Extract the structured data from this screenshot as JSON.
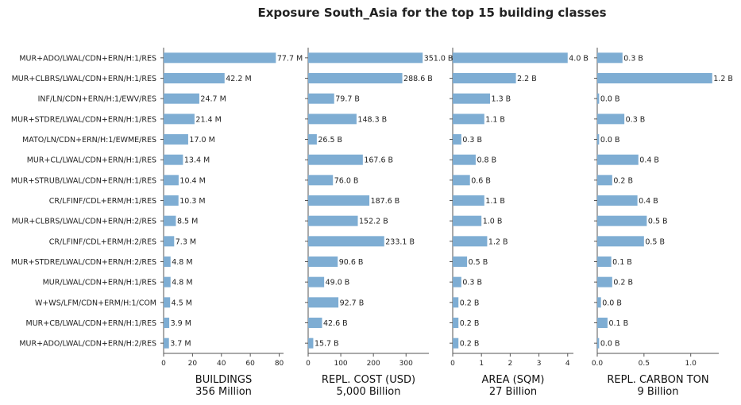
{
  "title": "Exposure South_Asia for the top 15 building classes",
  "bar_color": "#7eadd3",
  "categories": [
    "MUR+ADO/LWAL/CDN+ERN/H:1/RES",
    "MUR+CLBRS/LWAL/CDN+ERN/H:1/RES",
    "INF/LN/CDN+ERN/H:1/EWV/RES",
    "MUR+STDRE/LWAL/CDN+ERN/H:1/RES",
    "MATO/LN/CDN+ERN/H:1/EWME/RES",
    "MUR+CL/LWAL/CDN+ERN/H:1/RES",
    "MUR+STRUB/LWAL/CDN+ERN/H:1/RES",
    "CR/LFINF/CDL+ERM/H:1/RES",
    "MUR+CLBRS/LWAL/CDN+ERN/H:2/RES",
    "CR/LFINF/CDL+ERM/H:2/RES",
    "MUR+STDRE/LWAL/CDN+ERN/H:2/RES",
    "MUR/LWAL/CDN+ERN/H:1/RES",
    "W+WS/LFM/CDN+ERM/H:1/COM",
    "MUR+CB/LWAL/CDN+ERN/H:1/RES",
    "MUR+ADO/LWAL/CDN+ERN/H:2/RES"
  ],
  "chart_data": [
    {
      "type": "bar",
      "orientation": "horizontal",
      "xlabel": "BUILDINGS",
      "subtitle": "356 Million",
      "xlim": [
        0,
        83
      ],
      "ticks": [
        0,
        20,
        40,
        60,
        80
      ],
      "tick_labels": [
        "0",
        "20",
        "40",
        "60",
        "80"
      ],
      "values": [
        77.7,
        42.2,
        24.7,
        21.4,
        17.0,
        13.4,
        10.4,
        10.3,
        8.5,
        7.3,
        4.8,
        4.8,
        4.5,
        3.9,
        3.7
      ],
      "labels": [
        "77.7 M",
        "42.2 M",
        "24.7 M",
        "21.4 M",
        "17.0 M",
        "13.4 M",
        "10.4 M",
        "10.3 M",
        "8.5 M",
        "7.3 M",
        "4.8 M",
        "4.8 M",
        "4.5 M",
        "3.9 M",
        "3.7 M"
      ]
    },
    {
      "type": "bar",
      "orientation": "horizontal",
      "xlabel": "REPL. COST (USD)",
      "subtitle": "5,000 Billion",
      "xlim": [
        0,
        370
      ],
      "ticks": [
        0,
        100,
        200,
        300
      ],
      "tick_labels": [
        "0",
        "100",
        "200",
        "300"
      ],
      "values": [
        351.0,
        288.6,
        79.7,
        148.3,
        26.5,
        167.6,
        76.0,
        187.6,
        152.2,
        233.1,
        90.6,
        49.0,
        92.7,
        42.6,
        15.7
      ],
      "labels": [
        "351.0 B",
        "288.6 B",
        "79.7 B",
        "148.3 B",
        "26.5 B",
        "167.6 B",
        "76.0 B",
        "187.6 B",
        "152.2 B",
        "233.1 B",
        "90.6 B",
        "49.0 B",
        "92.7 B",
        "42.6 B",
        "15.7 B"
      ]
    },
    {
      "type": "bar",
      "orientation": "horizontal",
      "xlabel": "AREA (SQM)",
      "subtitle": "27 Billion",
      "xlim": [
        0,
        4.2
      ],
      "ticks": [
        0,
        1,
        2,
        3,
        4
      ],
      "tick_labels": [
        "0",
        "1",
        "2",
        "3",
        "4"
      ],
      "values": [
        4.0,
        2.2,
        1.3,
        1.1,
        0.3,
        0.8,
        0.6,
        1.1,
        1.0,
        1.2,
        0.5,
        0.3,
        0.2,
        0.2,
        0.2
      ],
      "labels": [
        "4.0 B",
        "2.2 B",
        "1.3 B",
        "1.1 B",
        "0.3 B",
        "0.8 B",
        "0.6 B",
        "1.1 B",
        "1.0 B",
        "1.2 B",
        "0.5 B",
        "0.3 B",
        "0.2 B",
        "0.2 B",
        "0.2 B"
      ]
    },
    {
      "type": "bar",
      "orientation": "horizontal",
      "xlabel": "REPL. CARBON TON",
      "subtitle": "9 Billion",
      "xlim": [
        0,
        1.3
      ],
      "ticks": [
        0,
        0.5,
        1.0
      ],
      "tick_labels": [
        "0.0",
        "0.5",
        "1.0"
      ],
      "values": [
        0.27,
        1.23,
        0.02,
        0.29,
        0.02,
        0.44,
        0.16,
        0.43,
        0.53,
        0.5,
        0.15,
        0.16,
        0.04,
        0.11,
        0.02
      ],
      "labels": [
        "0.3 B",
        "1.2 B",
        "0.0 B",
        "0.3 B",
        "0.0 B",
        "0.4 B",
        "0.2 B",
        "0.4 B",
        "0.5 B",
        "0.5 B",
        "0.1 B",
        "0.2 B",
        "0.0 B",
        "0.1 B",
        "0.0 B"
      ]
    }
  ]
}
